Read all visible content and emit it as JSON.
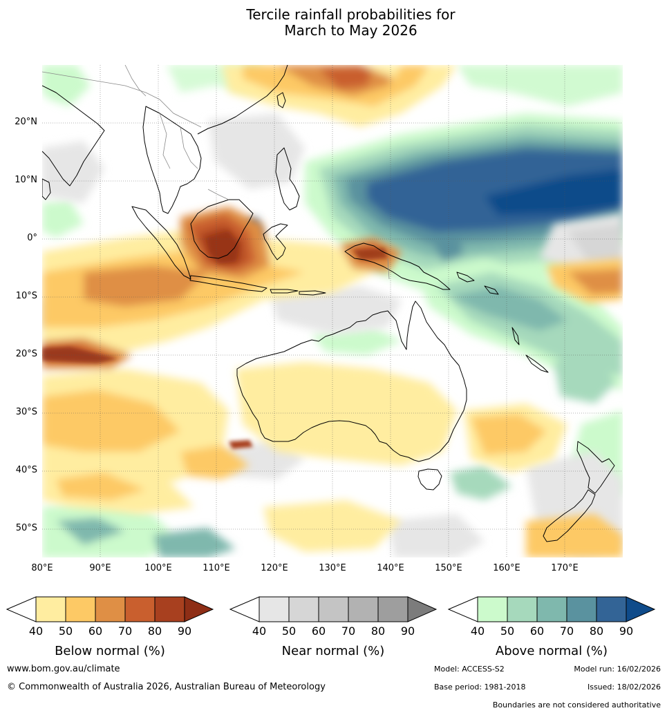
{
  "title": {
    "line1": "Tercile rainfall probabilities for",
    "line2": "March to May 2026"
  },
  "map": {
    "lat_labels": [
      "20°N",
      "10°N",
      "0°",
      "10°S",
      "20°S",
      "30°S",
      "40°S",
      "50°S"
    ],
    "lon_labels": [
      "80°E",
      "90°E",
      "100°E",
      "110°E",
      "120°E",
      "130°E",
      "140°E",
      "150°E",
      "160°E",
      "170°E"
    ]
  },
  "colorbars": [
    {
      "id": "below",
      "title": "Below normal (%)",
      "ticks": [
        "40",
        "50",
        "60",
        "70",
        "80",
        "90"
      ],
      "colors": [
        "#ffeda0",
        "#fdc965",
        "#df8f45",
        "#c95f2e",
        "#a8401f",
        "#8e2e16"
      ]
    },
    {
      "id": "near",
      "title": "Near normal (%)",
      "ticks": [
        "40",
        "50",
        "60",
        "70",
        "80",
        "90"
      ],
      "colors": [
        "#e6e6e6",
        "#d6d6d6",
        "#c4c4c4",
        "#b2b2b2",
        "#9e9e9e",
        "#7c7c7c"
      ]
    },
    {
      "id": "above",
      "title": "Above normal (%)",
      "ticks": [
        "40",
        "50",
        "60",
        "70",
        "80",
        "90"
      ],
      "colors": [
        "#ccfacc",
        "#a6d9bc",
        "#7fb8ad",
        "#5a929f",
        "#336496",
        "#0f4b8a"
      ]
    }
  ],
  "footer": {
    "website": "www.bom.gov.au/climate",
    "copyright": "© Commonwealth of Australia 2026, Australian Bureau of Meteorology",
    "model": "Model: ACCESS-S2",
    "model_run": "Model run: 16/02/2026",
    "base_period": "Base period: 1981-2018",
    "issued": "Issued: 18/02/2026",
    "disclaimer": "Boundaries are not considered authoritative"
  }
}
